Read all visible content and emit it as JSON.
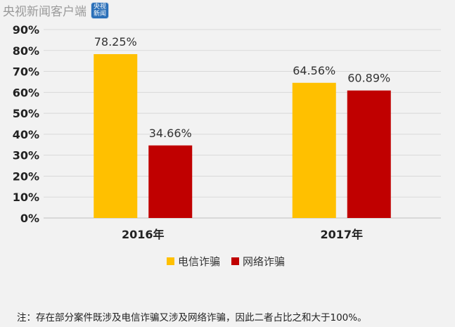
{
  "watermark": {
    "text": "央视新闻客户端",
    "logo_line1": "央视",
    "logo_line2": "新闻",
    "logo_icon": "cctv-news-logo-icon"
  },
  "colors": {
    "telecom": "#ffc000",
    "network": "#c00000",
    "grid": "#d9d9d9",
    "background": "#f2f2f2"
  },
  "chart_data": {
    "type": "bar",
    "title": "",
    "xlabel": "",
    "ylabel": "",
    "categories": [
      "2016年",
      "2017年"
    ],
    "series": [
      {
        "name": "电信诈骗",
        "values": [
          78.25,
          64.56
        ],
        "labels": [
          "78.25%",
          "64.56%"
        ],
        "color": "#ffc000"
      },
      {
        "name": "网络诈骗",
        "values": [
          34.66,
          60.89
        ],
        "labels": [
          "34.66%",
          "60.89%"
        ],
        "color": "#c00000"
      }
    ],
    "ylim": [
      0,
      90
    ],
    "yticks": [
      "0%",
      "10%",
      "20%",
      "30%",
      "40%",
      "50%",
      "60%",
      "70%",
      "80%",
      "90%"
    ],
    "grid": true,
    "legend_position": "bottom"
  },
  "note": "注：存在部分案件既涉及电信诈骗又涉及网络诈骗，因此二者占比之和大于100%。"
}
